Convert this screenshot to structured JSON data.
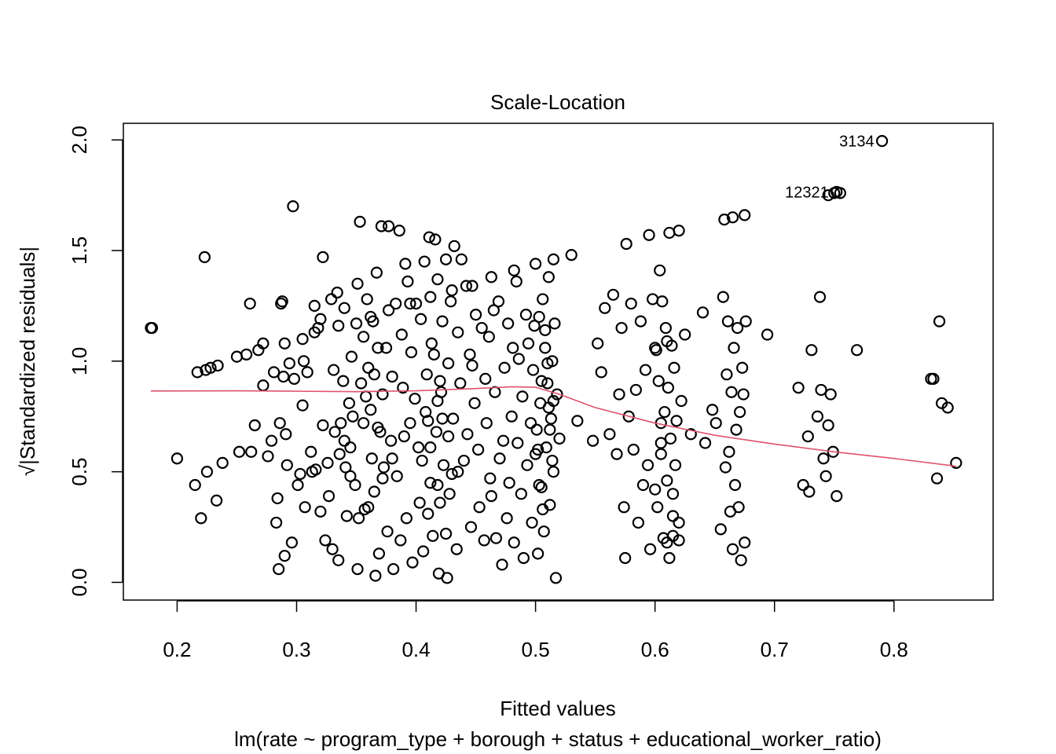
{
  "chart_data": {
    "type": "scatter",
    "title": "Scale-Location",
    "xlabel": "Fitted values",
    "subtitle": "lm(rate ~ program_type + borough + status + educational_worker_ratio)",
    "ylabel": "√|Standardized residuals|",
    "xlim": [
      0.155,
      0.883
    ],
    "ylim": [
      -0.08,
      2.075
    ],
    "x_ticks": [
      0.2,
      0.3,
      0.4,
      0.5,
      0.6,
      0.7,
      0.8
    ],
    "x_tick_labels": [
      "0.2",
      "0.3",
      "0.4",
      "0.5",
      "0.6",
      "0.7",
      "0.8"
    ],
    "y_ticks": [
      0.0,
      0.5,
      1.0,
      1.5,
      2.0
    ],
    "y_tick_labels": [
      "0.0",
      "0.5",
      "1.0",
      "1.5",
      "2.0"
    ],
    "grid": false,
    "marker": "open-circle",
    "smooth_color": "#DF536B",
    "point_color": "#000000",
    "smooth_line": {
      "x": [
        0.178,
        0.25,
        0.3,
        0.35,
        0.4,
        0.45,
        0.48,
        0.5,
        0.52,
        0.55,
        0.6,
        0.65,
        0.7,
        0.75,
        0.8,
        0.852
      ],
      "y": [
        0.865,
        0.866,
        0.864,
        0.862,
        0.866,
        0.876,
        0.884,
        0.882,
        0.85,
        0.79,
        0.72,
        0.665,
        0.625,
        0.59,
        0.56,
        0.525
      ]
    },
    "labeled_points": [
      {
        "label": "3134",
        "x": 0.79,
        "y": 1.995
      },
      {
        "label": "12321",
        "x": 0.752,
        "y": 1.765
      }
    ],
    "points": [
      [
        0.178,
        1.15
      ],
      [
        0.179,
        1.15
      ],
      [
        0.2,
        0.56
      ],
      [
        0.215,
        0.44
      ],
      [
        0.217,
        0.95
      ],
      [
        0.22,
        0.29
      ],
      [
        0.223,
        1.47
      ],
      [
        0.224,
        0.96
      ],
      [
        0.225,
        0.5
      ],
      [
        0.228,
        0.97
      ],
      [
        0.233,
        0.37
      ],
      [
        0.234,
        0.98
      ],
      [
        0.238,
        0.54
      ],
      [
        0.25,
        1.02
      ],
      [
        0.252,
        0.59
      ],
      [
        0.258,
        1.03
      ],
      [
        0.261,
        1.26
      ],
      [
        0.262,
        0.59
      ],
      [
        0.265,
        0.71
      ],
      [
        0.268,
        1.05
      ],
      [
        0.272,
        1.08
      ],
      [
        0.272,
        0.89
      ],
      [
        0.276,
        0.57
      ],
      [
        0.279,
        0.64
      ],
      [
        0.281,
        0.95
      ],
      [
        0.283,
        0.27
      ],
      [
        0.284,
        0.38
      ],
      [
        0.285,
        0.06
      ],
      [
        0.286,
        0.72
      ],
      [
        0.287,
        1.26
      ],
      [
        0.288,
        1.27
      ],
      [
        0.289,
        0.93
      ],
      [
        0.29,
        0.12
      ],
      [
        0.291,
        0.67
      ],
      [
        0.292,
        0.53
      ],
      [
        0.294,
        0.99
      ],
      [
        0.296,
        0.18
      ],
      [
        0.297,
        1.7
      ],
      [
        0.298,
        0.92
      ],
      [
        0.301,
        0.44
      ],
      [
        0.303,
        0.49
      ],
      [
        0.305,
        0.8
      ],
      [
        0.306,
        1.0
      ],
      [
        0.307,
        0.34
      ],
      [
        0.309,
        0.95
      ],
      [
        0.312,
        0.59
      ],
      [
        0.313,
        0.5
      ],
      [
        0.315,
        1.25
      ],
      [
        0.316,
        0.51
      ],
      [
        0.318,
        1.15
      ],
      [
        0.32,
        0.32
      ],
      [
        0.322,
        1.47
      ],
      [
        0.322,
        0.71
      ],
      [
        0.324,
        0.19
      ],
      [
        0.326,
        0.54
      ],
      [
        0.327,
        0.39
      ],
      [
        0.329,
        1.28
      ],
      [
        0.33,
        0.15
      ],
      [
        0.331,
        0.96
      ],
      [
        0.332,
        0.68
      ],
      [
        0.334,
        1.31
      ],
      [
        0.335,
        0.1
      ],
      [
        0.336,
        0.58
      ],
      [
        0.337,
        0.72
      ],
      [
        0.339,
        0.91
      ],
      [
        0.34,
        1.24
      ],
      [
        0.341,
        0.52
      ],
      [
        0.342,
        0.3
      ],
      [
        0.344,
        0.81
      ],
      [
        0.345,
        0.61
      ],
      [
        0.346,
        1.02
      ],
      [
        0.347,
        0.75
      ],
      [
        0.349,
        0.44
      ],
      [
        0.351,
        1.35
      ],
      [
        0.351,
        0.06
      ],
      [
        0.353,
        1.63
      ],
      [
        0.354,
        0.9
      ],
      [
        0.356,
        1.11
      ],
      [
        0.357,
        0.33
      ],
      [
        0.359,
        1.28
      ],
      [
        0.36,
        0.97
      ],
      [
        0.362,
        0.78
      ],
      [
        0.363,
        0.56
      ],
      [
        0.364,
        1.18
      ],
      [
        0.366,
        0.03
      ],
      [
        0.367,
        1.4
      ],
      [
        0.368,
        0.7
      ],
      [
        0.369,
        0.13
      ],
      [
        0.371,
        1.61
      ],
      [
        0.372,
        0.85
      ],
      [
        0.373,
        0.52
      ],
      [
        0.375,
        1.06
      ],
      [
        0.376,
        0.23
      ],
      [
        0.377,
        1.61
      ],
      [
        0.379,
        0.64
      ],
      [
        0.38,
        0.93
      ],
      [
        0.381,
        0.06
      ],
      [
        0.383,
        1.26
      ],
      [
        0.384,
        0.48
      ],
      [
        0.386,
        1.59
      ],
      [
        0.387,
        0.19
      ],
      [
        0.388,
        1.12
      ],
      [
        0.389,
        0.88
      ],
      [
        0.391,
        1.44
      ],
      [
        0.392,
        0.29
      ],
      [
        0.393,
        1.36
      ],
      [
        0.395,
        0.72
      ],
      [
        0.396,
        1.04
      ],
      [
        0.397,
        0.09
      ],
      [
        0.399,
        0.83
      ],
      [
        0.4,
        1.26
      ],
      [
        0.402,
        0.61
      ],
      [
        0.403,
        0.36
      ],
      [
        0.404,
        1.19
      ],
      [
        0.406,
        0.14
      ],
      [
        0.407,
        1.45
      ],
      [
        0.408,
        0.77
      ],
      [
        0.409,
        0.94
      ],
      [
        0.411,
        1.56
      ],
      [
        0.412,
        0.45
      ],
      [
        0.413,
        1.08
      ],
      [
        0.414,
        0.21
      ],
      [
        0.416,
        1.55
      ],
      [
        0.417,
        0.68
      ],
      [
        0.418,
        1.37
      ],
      [
        0.419,
        0.04
      ],
      [
        0.421,
        0.86
      ],
      [
        0.422,
        1.18
      ],
      [
        0.423,
        0.53
      ],
      [
        0.425,
        1.46
      ],
      [
        0.426,
        0.02
      ],
      [
        0.427,
        0.99
      ],
      [
        0.428,
        0.4
      ],
      [
        0.429,
        1.27
      ],
      [
        0.431,
        0.74
      ],
      [
        0.432,
        1.52
      ],
      [
        0.434,
        0.15
      ],
      [
        0.435,
        1.13
      ],
      [
        0.437,
        0.9
      ],
      [
        0.438,
        1.46
      ],
      [
        0.44,
        0.55
      ],
      [
        0.442,
        1.34
      ],
      [
        0.443,
        0.67
      ],
      [
        0.445,
        1.03
      ],
      [
        0.446,
        0.25
      ],
      [
        0.447,
        0.98
      ],
      [
        0.449,
        0.81
      ],
      [
        0.45,
        1.21
      ],
      [
        0.452,
        0.6
      ],
      [
        0.453,
        0.34
      ],
      [
        0.455,
        1.15
      ],
      [
        0.457,
        0.19
      ],
      [
        0.458,
        0.92
      ],
      [
        0.459,
        0.72
      ],
      [
        0.461,
        1.11
      ],
      [
        0.462,
        0.47
      ],
      [
        0.463,
        0.39
      ],
      [
        0.465,
        1.23
      ],
      [
        0.466,
        0.86
      ],
      [
        0.467,
        0.2
      ],
      [
        0.469,
        1.27
      ],
      [
        0.47,
        0.56
      ],
      [
        0.472,
        0.08
      ],
      [
        0.473,
        0.64
      ],
      [
        0.474,
        0.97
      ],
      [
        0.476,
        0.29
      ],
      [
        0.477,
        1.17
      ],
      [
        0.478,
        0.45
      ],
      [
        0.48,
        0.75
      ],
      [
        0.481,
        1.06
      ],
      [
        0.482,
        0.18
      ],
      [
        0.484,
        1.36
      ],
      [
        0.485,
        0.63
      ],
      [
        0.486,
        1.01
      ],
      [
        0.488,
        0.4
      ],
      [
        0.489,
        0.84
      ],
      [
        0.49,
        0.11
      ],
      [
        0.492,
        1.21
      ],
      [
        0.493,
        0.53
      ],
      [
        0.494,
        1.08
      ],
      [
        0.496,
        0.72
      ],
      [
        0.497,
        0.27
      ],
      [
        0.498,
        0.96
      ],
      [
        0.499,
        1.16
      ],
      [
        0.5,
        0.58
      ],
      [
        0.501,
        0.69
      ],
      [
        0.502,
        0.13
      ],
      [
        0.503,
        1.2
      ],
      [
        0.504,
        0.81
      ],
      [
        0.505,
        0.43
      ],
      [
        0.506,
        1.28
      ],
      [
        0.507,
        0.23
      ],
      [
        0.508,
        1.06
      ],
      [
        0.509,
        0.61
      ],
      [
        0.51,
        0.9
      ],
      [
        0.511,
        1.38
      ],
      [
        0.512,
        0.35
      ],
      [
        0.513,
        0.74
      ],
      [
        0.514,
        1.0
      ],
      [
        0.515,
        0.5
      ],
      [
        0.516,
        1.17
      ],
      [
        0.517,
        0.02
      ],
      [
        0.518,
        0.85
      ],
      [
        0.52,
        0.65
      ],
      [
        0.53,
        1.48
      ],
      [
        0.535,
        0.73
      ],
      [
        0.548,
        0.64
      ],
      [
        0.552,
        1.08
      ],
      [
        0.555,
        0.95
      ],
      [
        0.558,
        1.24
      ],
      [
        0.562,
        0.67
      ],
      [
        0.565,
        1.3
      ],
      [
        0.568,
        0.58
      ],
      [
        0.57,
        0.85
      ],
      [
        0.572,
        1.15
      ],
      [
        0.574,
        0.34
      ],
      [
        0.575,
        0.11
      ],
      [
        0.576,
        1.53
      ],
      [
        0.578,
        0.75
      ],
      [
        0.58,
        1.26
      ],
      [
        0.582,
        0.6
      ],
      [
        0.584,
        0.87
      ],
      [
        0.586,
        0.27
      ],
      [
        0.588,
        1.18
      ],
      [
        0.59,
        0.44
      ],
      [
        0.592,
        0.96
      ],
      [
        0.594,
        0.53
      ],
      [
        0.596,
        0.15
      ],
      [
        0.598,
        1.28
      ],
      [
        0.6,
        0.42
      ],
      [
        0.601,
        1.05
      ],
      [
        0.602,
        0.34
      ],
      [
        0.603,
        0.91
      ],
      [
        0.604,
        1.41
      ],
      [
        0.605,
        0.58
      ],
      [
        0.606,
        1.27
      ],
      [
        0.607,
        0.2
      ],
      [
        0.608,
        0.77
      ],
      [
        0.609,
        1.15
      ],
      [
        0.61,
        0.46
      ],
      [
        0.611,
        0.88
      ],
      [
        0.612,
        0.11
      ],
      [
        0.613,
        0.65
      ],
      [
        0.614,
        1.07
      ],
      [
        0.615,
        0.3
      ],
      [
        0.616,
        0.97
      ],
      [
        0.617,
        0.53
      ],
      [
        0.618,
        0.73
      ],
      [
        0.62,
        0.19
      ],
      [
        0.622,
        0.82
      ],
      [
        0.625,
        1.12
      ],
      [
        0.63,
        0.67
      ],
      [
        0.64,
        1.22
      ],
      [
        0.642,
        0.63
      ],
      [
        0.648,
        0.78
      ],
      [
        0.651,
        0.72
      ],
      [
        0.655,
        0.24
      ],
      [
        0.657,
        1.29
      ],
      [
        0.659,
        0.52
      ],
      [
        0.66,
        0.94
      ],
      [
        0.661,
        1.18
      ],
      [
        0.662,
        0.59
      ],
      [
        0.663,
        0.32
      ],
      [
        0.664,
        0.86
      ],
      [
        0.665,
        0.15
      ],
      [
        0.666,
        1.06
      ],
      [
        0.667,
        0.44
      ],
      [
        0.668,
        0.69
      ],
      [
        0.669,
        1.15
      ],
      [
        0.67,
        0.34
      ],
      [
        0.671,
        0.77
      ],
      [
        0.672,
        0.1
      ],
      [
        0.673,
        0.97
      ],
      [
        0.674,
        0.85
      ],
      [
        0.675,
        0.18
      ],
      [
        0.676,
        1.18
      ],
      [
        0.694,
        1.12
      ],
      [
        0.72,
        0.88
      ],
      [
        0.724,
        0.44
      ],
      [
        0.728,
        0.66
      ],
      [
        0.729,
        0.41
      ],
      [
        0.731,
        1.05
      ],
      [
        0.736,
        0.75
      ],
      [
        0.738,
        1.29
      ],
      [
        0.739,
        0.87
      ],
      [
        0.741,
        0.56
      ],
      [
        0.743,
        0.48
      ],
      [
        0.745,
        0.71
      ],
      [
        0.747,
        0.85
      ],
      [
        0.749,
        0.59
      ],
      [
        0.752,
        0.39
      ],
      [
        0.769,
        1.05
      ],
      [
        0.831,
        0.92
      ],
      [
        0.833,
        0.92
      ],
      [
        0.836,
        0.47
      ],
      [
        0.838,
        1.18
      ],
      [
        0.84,
        0.81
      ],
      [
        0.845,
        0.79
      ],
      [
        0.852,
        0.54
      ],
      [
        0.595,
        1.57
      ],
      [
        0.612,
        1.58
      ],
      [
        0.62,
        1.59
      ],
      [
        0.658,
        1.64
      ],
      [
        0.665,
        1.65
      ],
      [
        0.675,
        1.66
      ],
      [
        0.745,
        1.75
      ],
      [
        0.75,
        1.76
      ],
      [
        0.755,
        1.76
      ],
      [
        0.32,
        1.19
      ],
      [
        0.335,
        1.16
      ],
      [
        0.35,
        1.17
      ],
      [
        0.362,
        1.2
      ],
      [
        0.377,
        1.23
      ],
      [
        0.395,
        1.26
      ],
      [
        0.412,
        1.29
      ],
      [
        0.43,
        1.32
      ],
      [
        0.447,
        1.34
      ],
      [
        0.463,
        1.38
      ],
      [
        0.482,
        1.41
      ],
      [
        0.5,
        1.44
      ],
      [
        0.515,
        1.46
      ],
      [
        0.29,
        1.08
      ],
      [
        0.305,
        1.1
      ],
      [
        0.315,
        1.13
      ],
      [
        0.34,
        0.64
      ],
      [
        0.345,
        0.48
      ],
      [
        0.36,
        0.34
      ],
      [
        0.365,
        0.41
      ],
      [
        0.372,
        0.47
      ],
      [
        0.352,
        0.29
      ],
      [
        0.37,
        0.68
      ],
      [
        0.38,
        0.56
      ],
      [
        0.39,
        0.66
      ],
      [
        0.41,
        0.31
      ],
      [
        0.42,
        0.36
      ],
      [
        0.425,
        0.22
      ],
      [
        0.43,
        0.49
      ],
      [
        0.412,
        0.61
      ],
      [
        0.405,
        0.55
      ],
      [
        0.418,
        0.44
      ],
      [
        0.435,
        0.5
      ],
      [
        0.6,
        1.06
      ],
      [
        0.61,
        1.09
      ],
      [
        0.605,
        0.72
      ],
      [
        0.615,
        0.21
      ],
      [
        0.62,
        0.27
      ],
      [
        0.61,
        0.18
      ],
      [
        0.605,
        0.63
      ],
      [
        0.615,
        0.4
      ],
      [
        0.356,
        0.72
      ],
      [
        0.358,
        0.84
      ],
      [
        0.365,
        0.94
      ],
      [
        0.368,
        1.06
      ],
      [
        0.418,
        0.82
      ],
      [
        0.42,
        0.91
      ],
      [
        0.422,
        0.74
      ],
      [
        0.427,
        0.66
      ],
      [
        0.41,
        0.73
      ],
      [
        0.415,
        1.03
      ],
      [
        0.505,
        0.91
      ],
      [
        0.508,
        1.14
      ],
      [
        0.511,
        0.79
      ],
      [
        0.514,
        0.55
      ],
      [
        0.503,
        0.44
      ],
      [
        0.506,
        0.33
      ],
      [
        0.51,
        0.99
      ],
      [
        0.512,
        0.69
      ],
      [
        0.515,
        0.82
      ],
      [
        0.502,
        0.6
      ]
    ]
  }
}
